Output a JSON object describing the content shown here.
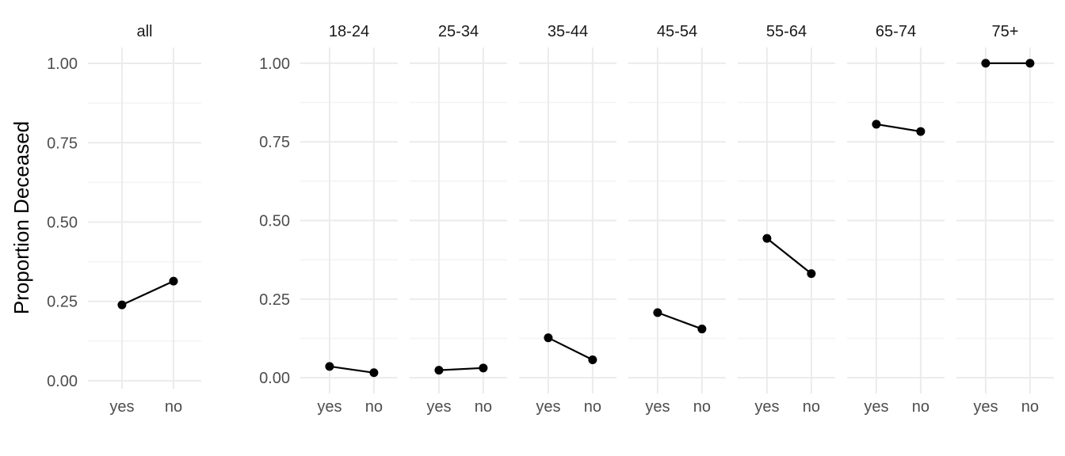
{
  "chart_data": {
    "type": "line",
    "ylabel": "Proportion Deceased",
    "xlabel": "",
    "categories": [
      "yes",
      "no"
    ],
    "grid": true,
    "panels": [
      {
        "title": "all",
        "ylim": [
          -0.025,
          1.05
        ],
        "yticks": [
          0,
          0.25,
          0.5,
          0.75,
          1
        ],
        "ytick_labels": [
          "0.00",
          "0.25",
          "0.50",
          "0.75",
          "1.00"
        ],
        "values": [
          0.239,
          0.314
        ]
      },
      {
        "title": "18-24",
        "ylim": [
          -0.05,
          1.05
        ],
        "yticks": [
          0,
          0.25,
          0.5,
          0.75,
          1
        ],
        "ytick_labels": [
          "0.00",
          "0.25",
          "0.50",
          "0.75",
          "1.00"
        ],
        "values": [
          0.036,
          0.016
        ]
      },
      {
        "title": "25-34",
        "ylim": [
          -0.05,
          1.05
        ],
        "values": [
          0.024,
          0.031
        ]
      },
      {
        "title": "35-44",
        "ylim": [
          -0.05,
          1.05
        ],
        "values": [
          0.127,
          0.057
        ]
      },
      {
        "title": "45-54",
        "ylim": [
          -0.05,
          1.05
        ],
        "values": [
          0.207,
          0.155
        ]
      },
      {
        "title": "55-64",
        "ylim": [
          -0.05,
          1.05
        ],
        "values": [
          0.443,
          0.331
        ]
      },
      {
        "title": "65-74",
        "ylim": [
          -0.05,
          1.05
        ],
        "values": [
          0.806,
          0.783
        ]
      },
      {
        "title": "75+",
        "ylim": [
          -0.05,
          1.05
        ],
        "values": [
          1.0,
          1.0
        ]
      }
    ]
  }
}
